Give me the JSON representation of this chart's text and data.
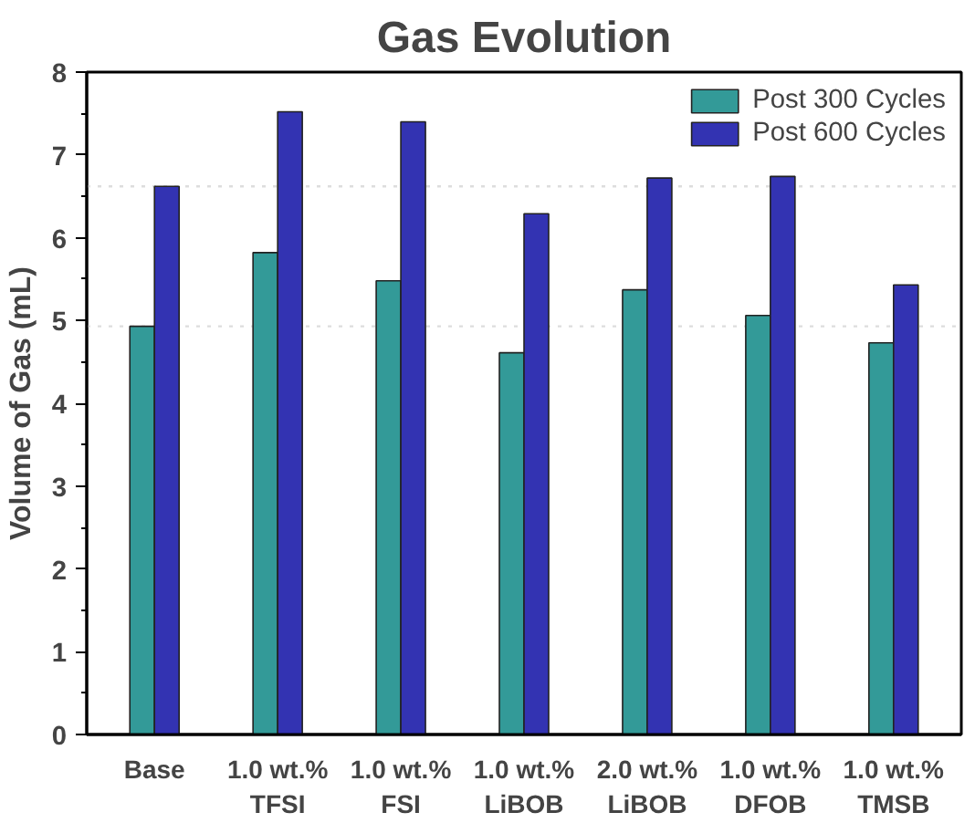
{
  "chart_data": {
    "type": "bar",
    "title": "Gas Evolution",
    "ylabel": "Volume of Gas (mL)",
    "categories": [
      "Base",
      "1.0 wt.%\nTFSI",
      "1.0 wt.%\nFSI",
      "1.0 wt.%\nLiBOB",
      "2.0 wt.%\nLiBOB",
      "1.0 wt.%\nDFOB",
      "1.0 wt.%\nTMSB"
    ],
    "series": [
      {
        "name": "Post 300 Cycles",
        "color": "#339a98",
        "values": [
          4.93,
          5.82,
          5.48,
          4.61,
          5.37,
          5.06,
          4.73
        ]
      },
      {
        "name": "Post 600 Cycles",
        "color": "#3333b2",
        "values": [
          6.62,
          7.52,
          7.4,
          6.29,
          6.72,
          6.74,
          5.43
        ]
      }
    ],
    "ylim": [
      0,
      8
    ],
    "yticks": [
      0,
      1,
      2,
      3,
      4,
      5,
      6,
      7,
      8
    ],
    "ref_lines": [
      {
        "axis": "y",
        "value": 6.62,
        "color": "#dddddd",
        "line_style": "dotted"
      },
      {
        "axis": "y",
        "value": 4.93,
        "color": "#dddddd",
        "line_style": "dotted"
      }
    ],
    "grid": false,
    "legend": "top right"
  }
}
